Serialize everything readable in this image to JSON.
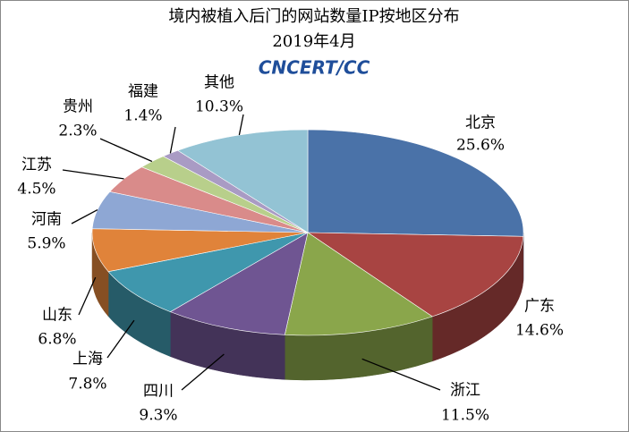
{
  "chart_data": {
    "type": "pie3d",
    "title": "境内被植入后门的网站数量IP按地区分布",
    "subtitle": "2019年4月",
    "logo": "CNCERT/CC",
    "categories": [
      "北京",
      "广东",
      "浙江",
      "四川",
      "上海",
      "山东",
      "河南",
      "江苏",
      "贵州",
      "福建",
      "其他"
    ],
    "values": [
      25.6,
      14.6,
      11.5,
      9.3,
      7.8,
      6.8,
      5.9,
      4.5,
      2.3,
      1.4,
      10.3
    ],
    "value_labels": [
      "25.6%",
      "14.6%",
      "11.5%",
      "9.3%",
      "7.8%",
      "6.8%",
      "5.9%",
      "4.5%",
      "2.3%",
      "1.4%",
      "10.3%"
    ],
    "colors": [
      "#4a72a8",
      "#a84442",
      "#8aa64b",
      "#6f5592",
      "#3f97ad",
      "#e0833a",
      "#8ea7d4",
      "#d98b8a",
      "#b8cf8b",
      "#a99bc4",
      "#93c3d4"
    ]
  }
}
